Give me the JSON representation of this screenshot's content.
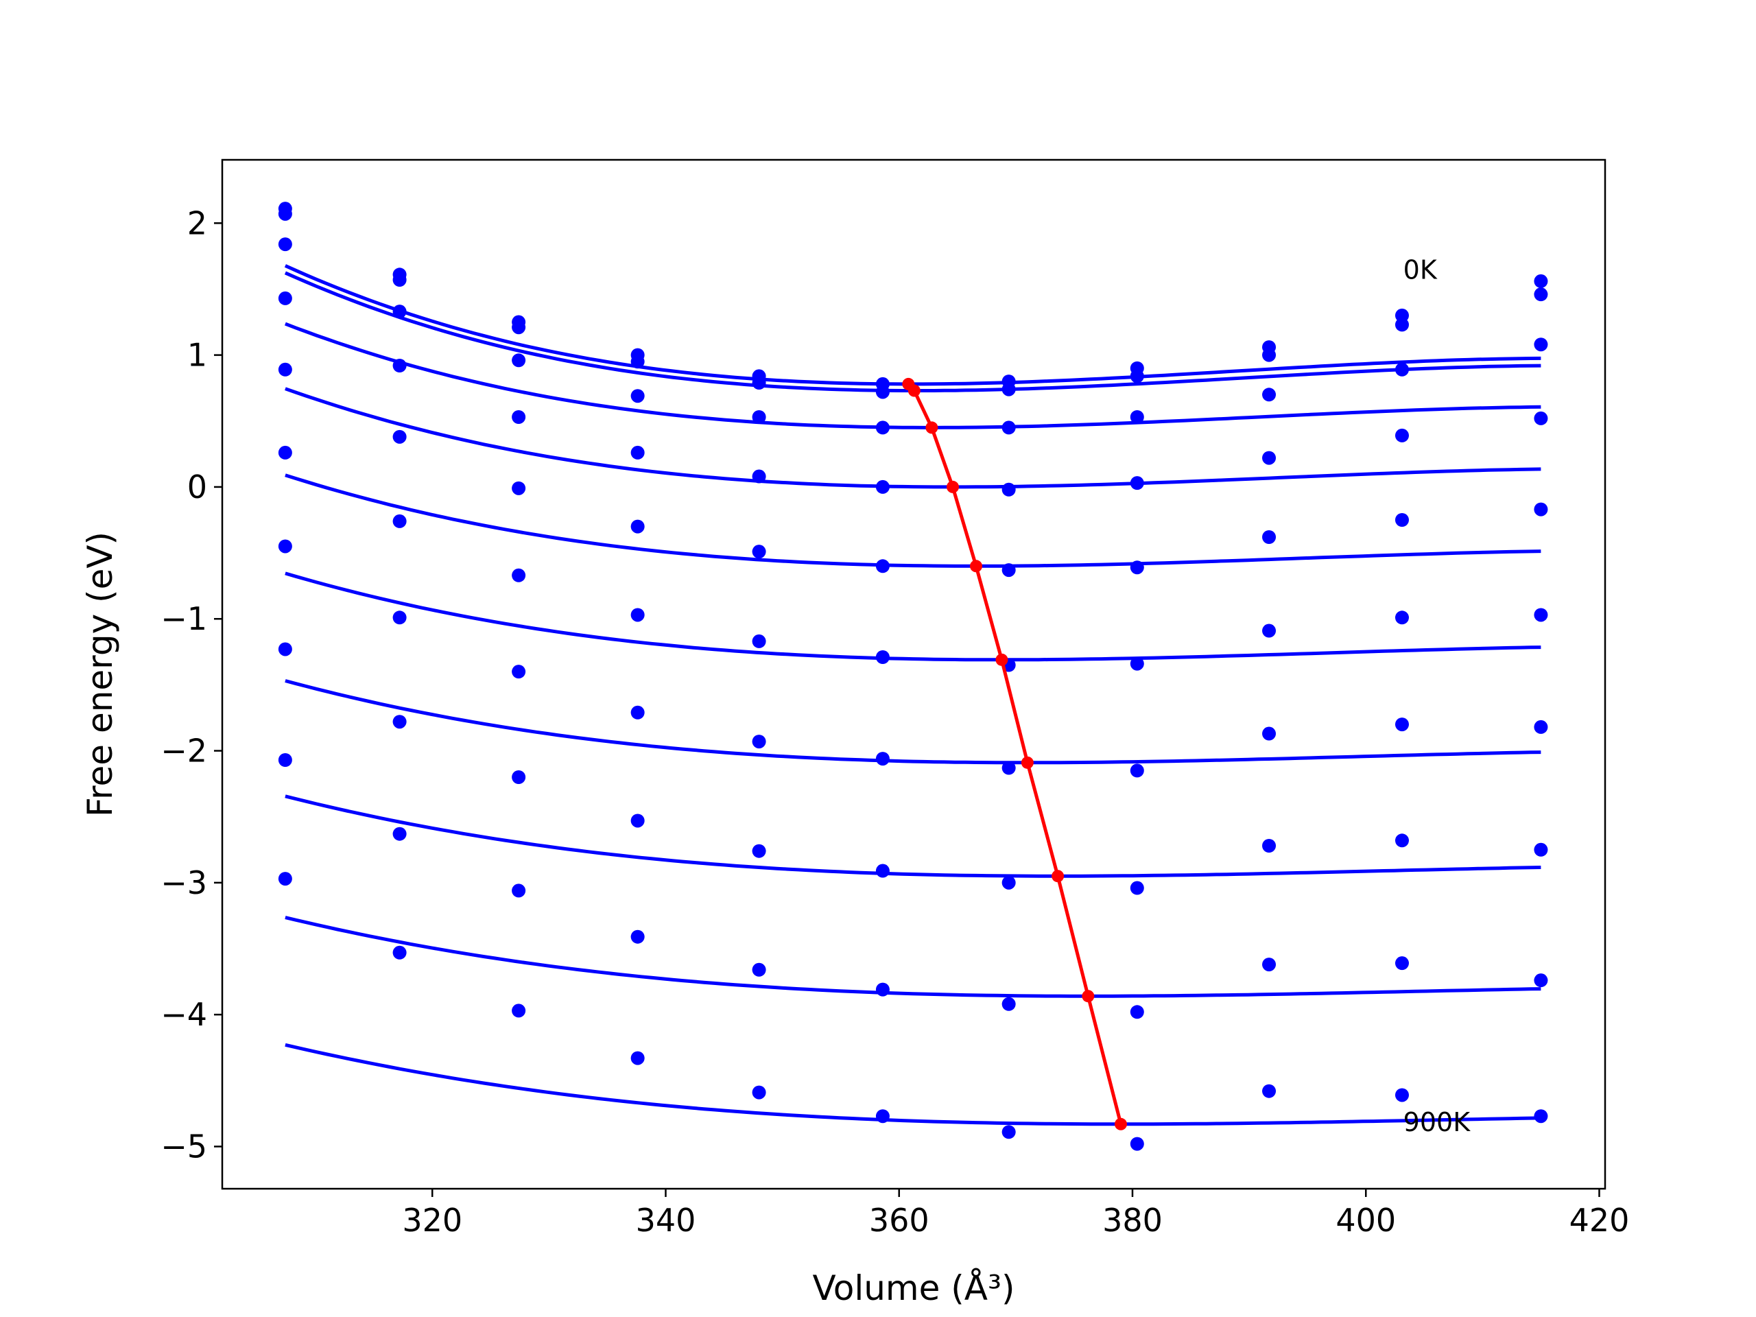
{
  "chart_data": {
    "type": "line",
    "xlabel": "Volume (Å³)",
    "ylabel": "Free energy (eV)",
    "xlim": [
      302,
      420.5
    ],
    "ylim": [
      -5.32,
      2.48
    ],
    "xticks": [
      320,
      340,
      360,
      380,
      400,
      420
    ],
    "yticks": [
      2,
      1,
      0,
      -1,
      -2,
      -3,
      -4,
      -5
    ],
    "ytick_labels": [
      "2",
      "1",
      "0",
      "−1",
      "−2",
      "−3",
      "−4",
      "−5"
    ],
    "grid": false,
    "annotations": [
      {
        "text": "0K",
        "x": 403.2,
        "y": 1.64
      },
      {
        "text": "900K",
        "x": 403.2,
        "y": -4.82
      }
    ],
    "curve_color": "#0000ff",
    "eq_color": "#ff0000",
    "volumes": [
      307.4,
      317.2,
      327.4,
      337.6,
      348.0,
      358.6,
      369.4,
      380.4,
      391.7,
      403.1,
      415.0
    ],
    "series": [
      {
        "points": [
          2.11,
          1.61,
          1.25,
          1.0,
          0.84,
          0.78,
          0.8,
          0.9,
          1.06,
          1.3,
          1.56
        ],
        "fit": {
          "min_v": 361.0,
          "min_f": 0.78,
          "a": 0.00019
        }
      },
      {
        "points": [
          2.07,
          1.57,
          1.21,
          0.95,
          0.79,
          0.72,
          0.74,
          0.84,
          1.0,
          1.23,
          1.46
        ],
        "fit": {
          "min_v": 361.5,
          "min_f": 0.73,
          "a": 0.000185
        }
      },
      {
        "points": [
          1.84,
          1.33,
          0.96,
          0.69,
          0.53,
          0.45,
          0.45,
          0.53,
          0.7,
          0.89,
          1.08
        ],
        "fit": {
          "min_v": 362.8,
          "min_f": 0.45,
          "a": 0.000154
        }
      },
      {
        "points": [
          1.43,
          0.92,
          0.53,
          0.26,
          0.08,
          0.0,
          -0.02,
          0.03,
          0.22,
          0.39,
          0.52
        ],
        "fit": {
          "min_v": 364.6,
          "min_f": 0.0,
          "a": 0.000135
        }
      },
      {
        "points": [
          0.89,
          0.38,
          -0.01,
          -0.3,
          -0.49,
          -0.6,
          -0.63,
          -0.61,
          -0.38,
          -0.25,
          -0.17
        ],
        "fit": {
          "min_v": 366.6,
          "min_f": -0.6,
          "a": 0.000115
        }
      },
      {
        "points": [
          0.26,
          -0.26,
          -0.67,
          -0.97,
          -1.17,
          -1.29,
          -1.35,
          -1.34,
          -1.09,
          -0.99,
          -0.97
        ],
        "fit": {
          "min_v": 368.8,
          "min_f": -1.31,
          "a": 0.0001
        }
      },
      {
        "points": [
          -0.45,
          -0.99,
          -1.4,
          -1.71,
          -1.93,
          -2.06,
          -2.13,
          -2.15,
          -1.87,
          -1.8,
          -1.82
        ],
        "fit": {
          "min_v": 371.0,
          "min_f": -2.09,
          "a": 8.7e-05
        }
      },
      {
        "points": [
          -1.23,
          -1.78,
          -2.2,
          -2.53,
          -2.76,
          -2.91,
          -3.0,
          -3.04,
          -2.72,
          -2.68,
          -2.75
        ],
        "fit": {
          "min_v": 373.6,
          "min_f": -2.95,
          "a": 7.7e-05
        }
      },
      {
        "points": [
          -2.07,
          -2.63,
          -3.06,
          -3.41,
          -3.66,
          -3.81,
          -3.92,
          -3.98,
          -3.62,
          -3.61,
          -3.74
        ],
        "fit": {
          "min_v": 376.2,
          "min_f": -3.86,
          "a": 6.9e-05
        }
      },
      {
        "points": [
          -2.97,
          -3.53,
          -3.97,
          -4.33,
          -4.59,
          -4.77,
          -4.89,
          -4.98,
          -4.58,
          -4.61,
          -4.77
        ],
        "fit": {
          "min_v": 379.0,
          "min_f": -4.83,
          "a": 6.3e-05
        }
      }
    ],
    "equilibrium": {
      "x": [
        360.8,
        361.3,
        362.8,
        364.6,
        366.6,
        368.8,
        371.0,
        373.6,
        376.2,
        379.0
      ],
      "y": [
        0.78,
        0.73,
        0.45,
        0.0,
        -0.6,
        -1.31,
        -2.09,
        -2.95,
        -3.86,
        -4.83
      ]
    }
  }
}
